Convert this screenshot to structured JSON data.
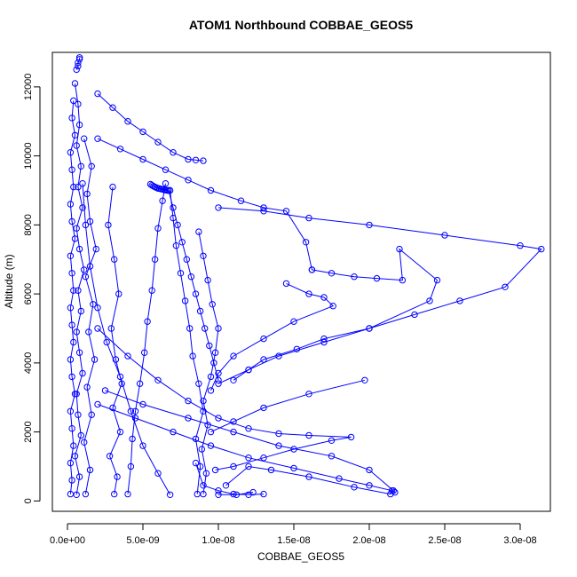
{
  "chart_data": {
    "type": "line",
    "title": "ATOM1 Northbound COBBAE_GEOS5",
    "xlabel": "COBBAE_GEOS5",
    "ylabel": "Altitude (m)",
    "xlim": [
      -1e-09,
      3.2e-08
    ],
    "ylim": [
      -300,
      13000
    ],
    "x_ticks": [
      0,
      5e-09,
      1e-08,
      1.5e-08,
      2e-08,
      2.5e-08,
      3e-08
    ],
    "x_tick_labels": [
      "0.0e+00",
      "5.0e-09",
      "1.0e-08",
      "1.5e-08",
      "2.0e-08",
      "2.5e-08",
      "3.0e-08"
    ],
    "y_ticks": [
      0,
      2000,
      4000,
      6000,
      8000,
      10000,
      12000
    ],
    "y_tick_labels": [
      "0",
      "2000",
      "4000",
      "6000",
      "8000",
      "10000",
      "12000"
    ],
    "marker": "open-circle",
    "color": "#0000ff",
    "grid": false,
    "legend": "none",
    "series": [
      {
        "x": [
          2e-10,
          3e-10,
          2e-10,
          4e-10,
          3e-10,
          2e-10,
          5e-10,
          3e-10,
          2e-10,
          4e-10,
          3e-10,
          2e-10,
          4e-10,
          3e-10,
          2e-10,
          5e-10,
          3e-10,
          2e-10,
          4e-10,
          3e-10,
          2e-10,
          5e-10,
          3e-10,
          4e-10
        ],
        "y": [
          200,
          600,
          1100,
          1600,
          2100,
          2600,
          3100,
          3600,
          4100,
          4600,
          5100,
          5600,
          6100,
          6600,
          7100,
          7600,
          8100,
          8600,
          9100,
          9600,
          10100,
          10600,
          11100,
          11600
        ]
      },
      {
        "x": [
          6e-10,
          8e-10,
          5e-10,
          9e-10,
          7e-10,
          6e-10,
          1e-09,
          8e-10,
          6e-10,
          9e-10,
          7e-10,
          1.1e-09,
          8e-10,
          6e-10,
          1e-09,
          7e-10,
          9e-10,
          6e-10,
          8e-10,
          7e-10,
          5e-10
        ],
        "y": [
          180,
          700,
          1300,
          1900,
          2500,
          3100,
          3700,
          4300,
          4900,
          5500,
          6100,
          6700,
          7300,
          7900,
          8500,
          9100,
          9700,
          10300,
          10900,
          11500,
          12100
        ]
      },
      {
        "x": [
          1.2e-09,
          1.5e-09,
          1.1e-09,
          1.6e-09,
          1.3e-09,
          1.8e-09,
          1.4e-09,
          1.7e-09,
          1.2e-09,
          1.9e-09,
          1.5e-09,
          1.3e-09,
          1.6e-09,
          1.1e-09
        ],
        "y": [
          200,
          900,
          1700,
          2500,
          3300,
          4100,
          4900,
          5700,
          6500,
          7300,
          8100,
          8900,
          9700,
          10500
        ]
      },
      {
        "x": [
          6e-10,
          7e-10,
          7e-10,
          8e-10,
          8e-10
        ],
        "y": [
          12500,
          12600,
          12700,
          12800,
          12850
        ]
      },
      {
        "x": [
          6.8e-09,
          6e-09,
          5e-09,
          4.2e-09,
          3.5e-09,
          2.6e-09,
          2e-09,
          1.5e-09,
          1.2e-09,
          1e-09
        ],
        "y": [
          180,
          800,
          1600,
          2600,
          3600,
          4600,
          5600,
          6800,
          8000,
          9200
        ]
      },
      {
        "x": [
          3.1e-09,
          3.3e-09,
          2.8e-09,
          3.5e-09,
          3e-09,
          3.6e-09,
          3.2e-09,
          2.9e-09,
          3.4e-09,
          3.1e-09,
          2.7e-09,
          3e-09
        ],
        "y": [
          200,
          700,
          1300,
          2000,
          2700,
          3400,
          4100,
          5000,
          6000,
          7000,
          8000,
          9100
        ]
      },
      {
        "x": [
          4e-09,
          4.2e-09,
          4.3e-09,
          4.5e-09,
          4.8e-09,
          5.1e-09,
          5.3e-09,
          5.6e-09,
          5.8e-09,
          6e-09,
          6.3e-09,
          6.5e-09
        ],
        "y": [
          200,
          1000,
          1800,
          2600,
          3400,
          4300,
          5200,
          6100,
          7000,
          7900,
          8700,
          9200
        ]
      },
      {
        "x": [
          5.5e-09,
          5.6e-09,
          5.7e-09,
          5.8e-09,
          5.9e-09,
          6e-09,
          6.1e-09,
          6.2e-09,
          6.3e-09,
          6.4e-09,
          6.5e-09,
          6.6e-09,
          6.7e-09
        ],
        "y": [
          9180,
          9150,
          9120,
          9100,
          9080,
          9060,
          9050,
          9040,
          9030,
          9020,
          9010,
          9000,
          9000
        ]
      },
      {
        "x": [
          6.7e-09,
          7e-09,
          7.3e-09,
          7.6e-09,
          7.9e-09,
          8.2e-09,
          8.5e-09,
          8.8e-09,
          9.1e-09,
          9.4e-09,
          9.7e-09,
          1e-08
        ],
        "y": [
          9000,
          8500,
          8000,
          7500,
          7000,
          6500,
          6000,
          5500,
          5000,
          4500,
          4000,
          3500
        ]
      },
      {
        "x": [
          8.6e-09,
          8.8e-09,
          8.5e-09,
          9e-09,
          8.7e-09,
          8.3e-09,
          8.1e-09,
          7.8e-09,
          7.5e-09,
          7.2e-09,
          7e-09,
          6.8e-09
        ],
        "y": [
          200,
          1000,
          1800,
          2600,
          3400,
          4200,
          5000,
          5800,
          6600,
          7400,
          8200,
          9000
        ]
      },
      {
        "x": [
          9e-09,
          9.2e-09,
          8.9e-09,
          9.3e-09,
          9e-09,
          9.5e-09,
          9.8e-09,
          1e-08,
          9.6e-09,
          9.3e-09,
          9e-09,
          8.7e-09
        ],
        "y": [
          200,
          800,
          1500,
          2200,
          2900,
          3600,
          4300,
          5000,
          5700,
          6400,
          7100,
          7800
        ]
      },
      {
        "x": [
          2e-09,
          3e-09,
          4e-09,
          5e-09,
          6e-09,
          7e-09,
          8e-09,
          8.5e-09,
          9e-09
        ],
        "y": [
          11800,
          11400,
          11000,
          10700,
          10400,
          10100,
          9900,
          9880,
          9860
        ]
      },
      {
        "x": [
          2e-09,
          3.5e-09,
          5e-09,
          6.5e-09,
          8e-09,
          9.5e-09,
          1.15e-08,
          1.3e-08,
          1.45e-08,
          1.58e-08,
          1.62e-08
        ],
        "y": [
          10500,
          10200,
          9900,
          9600,
          9300,
          9000,
          8700,
          8500,
          8400,
          7500,
          6700
        ]
      },
      {
        "x": [
          1.62e-08,
          1.75e-08,
          1.9e-08,
          2.05e-08,
          2.22e-08,
          2.2e-08,
          2.45e-08,
          2.4e-08,
          2e-08,
          1.7e-08,
          1.52e-08,
          1.3e-08,
          1.2e-08,
          1.1e-08
        ],
        "y": [
          6700,
          6600,
          6500,
          6450,
          6400,
          7300,
          6400,
          5800,
          5000,
          4700,
          4400,
          4100,
          3800,
          3500
        ]
      },
      {
        "x": [
          1e-08,
          1.3e-08,
          1.6e-08,
          2e-08,
          2.5e-08,
          3e-08,
          3.14e-08,
          2.9e-08,
          2.6e-08,
          2.3e-08,
          2e-08,
          1.7e-08,
          1.4e-08,
          1.2e-08,
          1e-08
        ],
        "y": [
          8500,
          8400,
          8200,
          8000,
          7700,
          7400,
          7300,
          6200,
          5800,
          5400,
          5000,
          4600,
          4200,
          3800,
          3400
        ]
      },
      {
        "x": [
          1.45e-08,
          1.6e-08,
          1.7e-08,
          1.76e-08,
          1.5e-08,
          1.3e-08,
          1.1e-08,
          1e-08,
          9.5e-09
        ],
        "y": [
          6300,
          6000,
          5900,
          5650,
          5200,
          4700,
          4200,
          3700,
          3200
        ]
      },
      {
        "x": [
          2e-09,
          4e-09,
          6e-09,
          8e-09,
          1e-08,
          1.2e-08,
          1.4e-08,
          1.6e-08,
          1.88e-08,
          1.75e-08,
          1.5e-08,
          1.3e-08,
          1.1e-08,
          9.8e-09
        ],
        "y": [
          5000,
          4200,
          3500,
          2900,
          2400,
          2100,
          1950,
          1900,
          1850,
          1750,
          1500,
          1250,
          1000,
          900
        ]
      },
      {
        "x": [
          2.5e-09,
          5e-09,
          8e-09,
          1.1e-08,
          1.4e-08,
          1.75e-08,
          2e-08,
          2.16e-08,
          2.14e-08,
          1.9e-08,
          1.6e-08,
          1.35e-08,
          1.2e-08,
          1.05e-08
        ],
        "y": [
          3200,
          2800,
          2400,
          2000,
          1600,
          1300,
          900,
          300,
          200,
          400,
          700,
          900,
          1000,
          450
        ]
      },
      {
        "x": [
          2e-09,
          4.5e-09,
          7e-09,
          9.5e-09,
          1.2e-08,
          1.5e-08,
          1.8e-08,
          2e-08,
          2.15e-08,
          2.17e-08
        ],
        "y": [
          2800,
          2400,
          2000,
          1600,
          1250,
          950,
          650,
          450,
          300,
          250
        ]
      },
      {
        "x": [
          8.5e-09,
          9e-09,
          1e-08,
          1.1e-08,
          1.2e-08,
          1.3e-08
        ],
        "y": [
          1100,
          450,
          300,
          200,
          180,
          200
        ]
      },
      {
        "x": [
          1e-08,
          1.12e-08,
          1.23e-08
        ],
        "y": [
          180,
          180,
          250
        ]
      },
      {
        "x": [
          1.97e-08,
          1.6e-08,
          1.3e-08,
          1.1e-08,
          9.5e-09
        ],
        "y": [
          3500,
          3100,
          2700,
          2300,
          2000
        ]
      }
    ]
  }
}
